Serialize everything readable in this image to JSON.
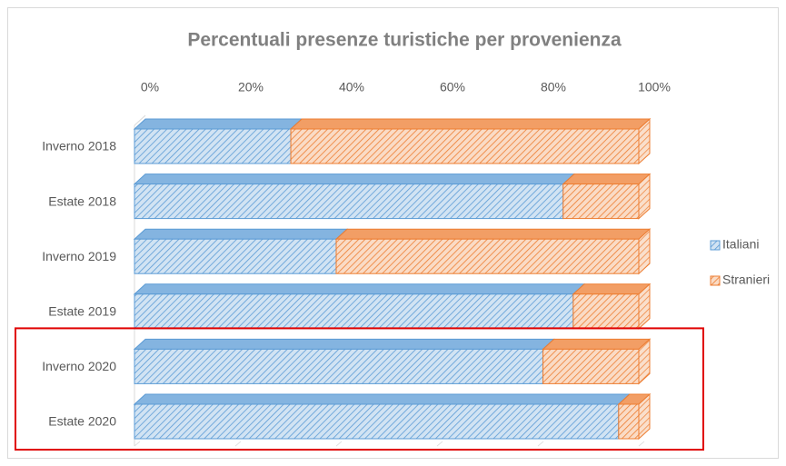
{
  "chart_data": {
    "type": "bar",
    "stacked": true,
    "orientation": "horizontal",
    "title": "Percentuali presenze turistiche per provenienza",
    "categories": [
      "Inverno 2018",
      "Estate 2018",
      "Inverno 2019",
      "Estate 2019",
      "Inverno 2020",
      "Estate 2020"
    ],
    "series": [
      {
        "name": "Italiani",
        "color": "#5b9bd5",
        "values": [
          31,
          85,
          40,
          87,
          81,
          96
        ]
      },
      {
        "name": "Stranieri",
        "color": "#ed7d31",
        "values": [
          69,
          15,
          60,
          13,
          19,
          4
        ]
      }
    ],
    "xlim": [
      0,
      100
    ],
    "xticks": [
      {
        "value": 0,
        "label": "0%"
      },
      {
        "value": 20,
        "label": "20%"
      },
      {
        "value": 40,
        "label": "40%"
      },
      {
        "value": 60,
        "label": "60%"
      },
      {
        "value": 80,
        "label": "80%"
      },
      {
        "value": 100,
        "label": "100%"
      }
    ],
    "legend": "right",
    "grid": false
  }
}
